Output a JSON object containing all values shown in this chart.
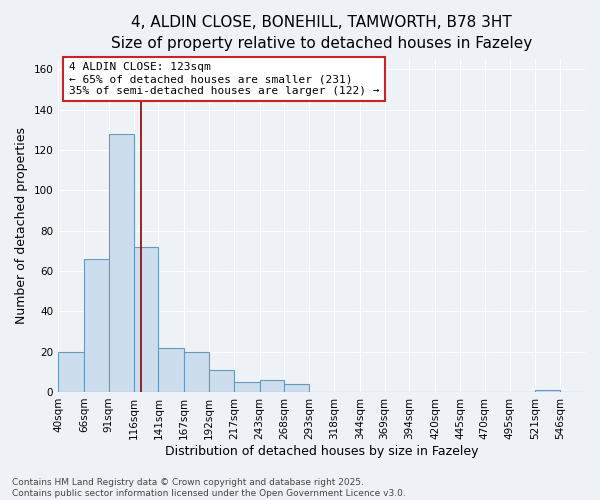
{
  "title_line1": "4, ALDIN CLOSE, BONEHILL, TAMWORTH, B78 3HT",
  "title_line2": "Size of property relative to detached houses in Fazeley",
  "xlabel": "Distribution of detached houses by size in Fazeley",
  "ylabel": "Number of detached properties",
  "bar_edges": [
    40,
    66,
    91,
    116,
    141,
    167,
    192,
    217,
    243,
    268,
    293,
    318,
    344,
    369,
    394,
    420,
    445,
    470,
    495,
    521,
    546
  ],
  "bar_heights": [
    20,
    66,
    128,
    72,
    22,
    20,
    11,
    5,
    6,
    4,
    0,
    0,
    0,
    0,
    0,
    0,
    0,
    0,
    0,
    1,
    0
  ],
  "bar_color": "#ccdded",
  "bar_edge_color": "#6699bb",
  "red_line_x": 123,
  "red_line_color": "#8b0000",
  "ylim": [
    0,
    165
  ],
  "yticks": [
    0,
    20,
    40,
    60,
    80,
    100,
    120,
    140,
    160
  ],
  "annotation_title": "4 ALDIN CLOSE: 123sqm",
  "annotation_line2": "← 65% of detached houses are smaller (231)",
  "annotation_line3": "35% of semi-detached houses are larger (122) →",
  "footer_line1": "Contains HM Land Registry data © Crown copyright and database right 2025.",
  "footer_line2": "Contains public sector information licensed under the Open Government Licence v3.0.",
  "background_color": "#eef2f7",
  "grid_color": "#ffffff",
  "title_fontsize": 11,
  "axis_label_fontsize": 9,
  "tick_fontsize": 7.5,
  "footer_fontsize": 6.5,
  "annot_fontsize": 8
}
